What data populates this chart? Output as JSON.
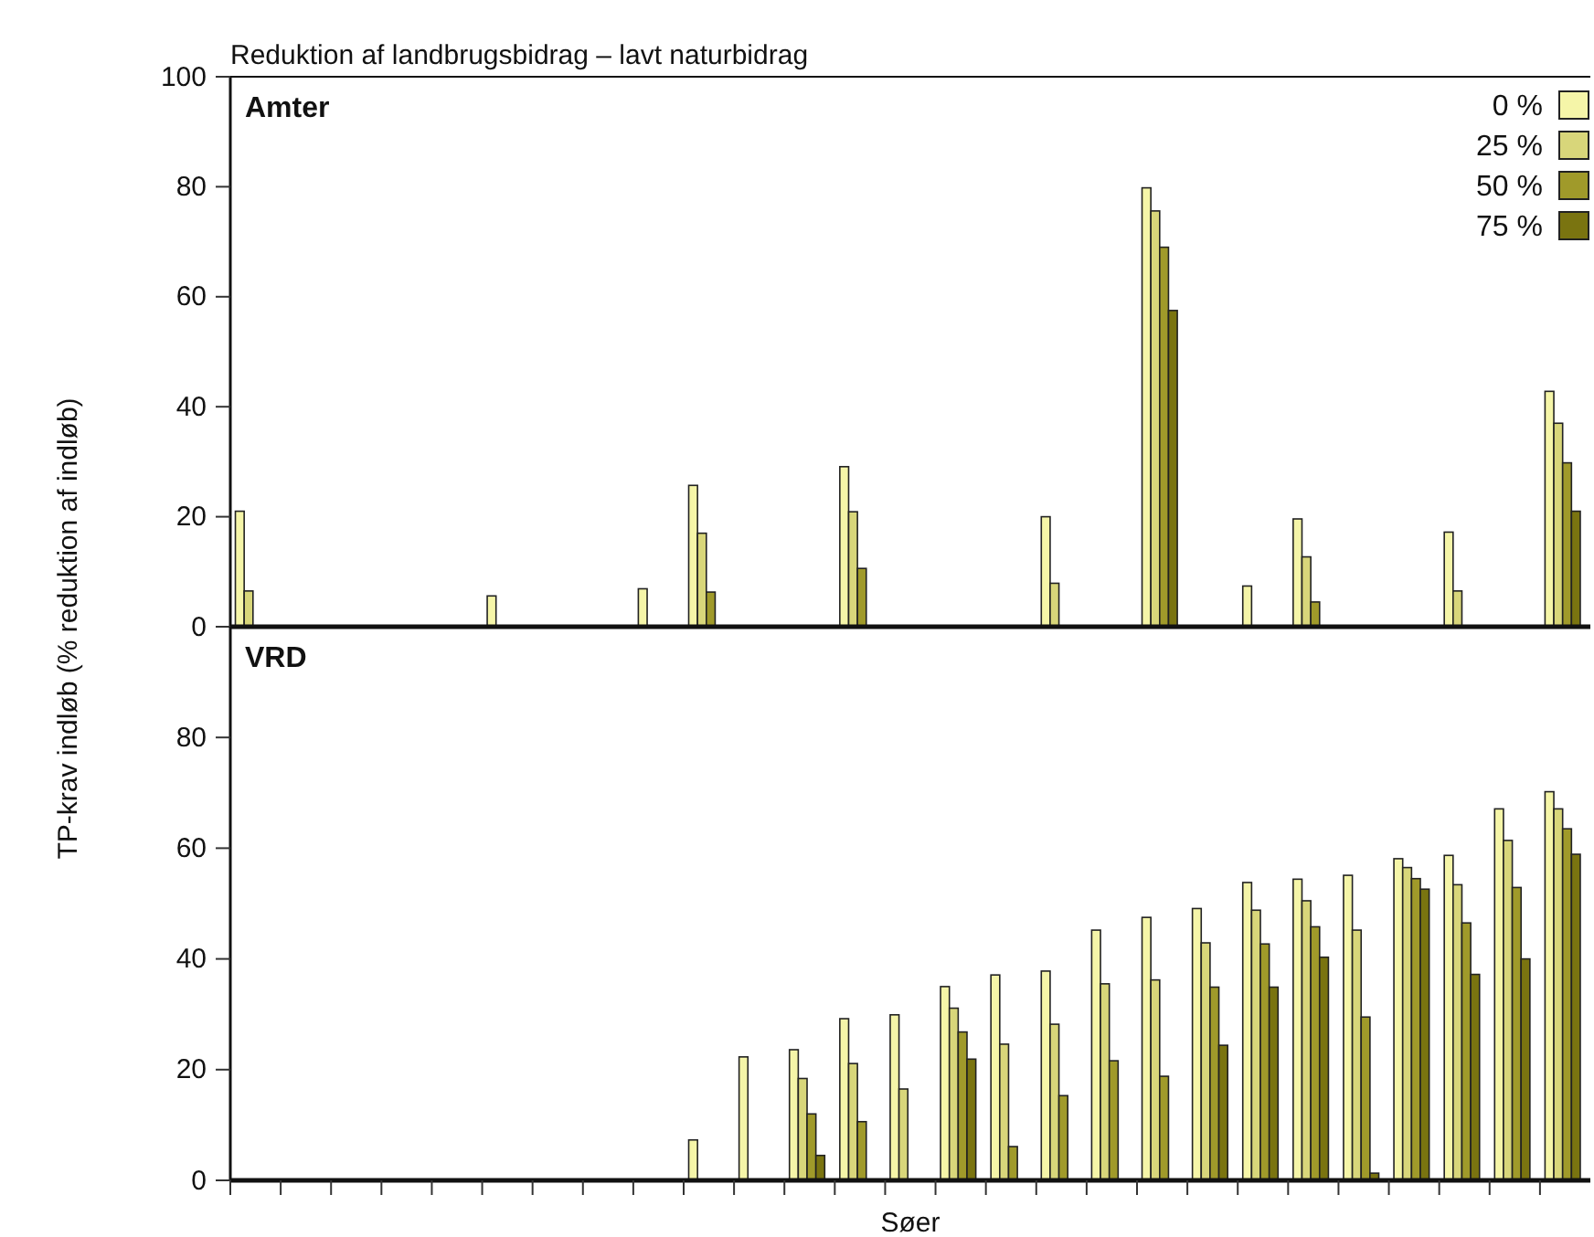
{
  "chart_data": [
    {
      "type": "bar",
      "title": "Reduktion af landbrugsbidrag – lavt naturbidrag",
      "ylabel": "TP-krav indløb (% reduktion af indløb)",
      "annotations": [
        "Amter"
      ],
      "categories": [
        null,
        null,
        null,
        null,
        null,
        null,
        null,
        null,
        null,
        null,
        null,
        null,
        null,
        null,
        null,
        null,
        null,
        null,
        null,
        null,
        null,
        null,
        null,
        null,
        null,
        null,
        null
      ],
      "series": [
        {
          "name": "0 %",
          "color": "#f5f5a8",
          "values": [
            21,
            0,
            0,
            0,
            0,
            5.6,
            0,
            0,
            6.9,
            25.7,
            0,
            0,
            29.1,
            0,
            0,
            0,
            20,
            0,
            79.8,
            0,
            7.4,
            19.6,
            0,
            0,
            17.2,
            0,
            42.8
          ]
        },
        {
          "name": "25 %",
          "color": "#d8d67a",
          "values": [
            6.5,
            0,
            0,
            0,
            0,
            0,
            0,
            0,
            0,
            17,
            0,
            0,
            20.9,
            0,
            0,
            0,
            7.9,
            0,
            75.6,
            0,
            0,
            12.7,
            0,
            0,
            6.5,
            0,
            37
          ]
        },
        {
          "name": "50 %",
          "color": "#a09a2a",
          "values": [
            0,
            0,
            0,
            0,
            0,
            0,
            0,
            0,
            0,
            6.3,
            0,
            0,
            10.6,
            0,
            0,
            0,
            0,
            0,
            69,
            0,
            0,
            4.5,
            0,
            0,
            0,
            0,
            29.8
          ]
        },
        {
          "name": "75 %",
          "color": "#7a7410",
          "values": [
            0,
            0,
            0,
            0,
            0,
            0,
            0,
            0,
            0,
            0,
            0,
            0,
            0,
            0,
            0,
            0,
            0,
            0,
            57.5,
            0,
            0,
            0,
            0,
            0,
            0,
            0,
            21
          ]
        }
      ],
      "ylim": [
        0,
        100
      ],
      "yticks": [
        0,
        20,
        40,
        60,
        80,
        100
      ],
      "tick_labels": "y",
      "legend": "top right"
    },
    {
      "type": "bar",
      "xlabel": "Søer",
      "annotations": [
        "VRD"
      ],
      "categories": [
        null,
        null,
        null,
        null,
        null,
        null,
        null,
        null,
        null,
        null,
        null,
        null,
        null,
        null,
        null,
        null,
        null,
        null,
        null,
        null,
        null,
        null,
        null,
        null,
        null,
        null,
        null
      ],
      "series": [
        {
          "color": "#f5f5a8",
          "values": [
            0,
            0,
            0,
            0,
            0,
            0,
            0,
            0,
            0,
            7.3,
            22.3,
            23.6,
            29.2,
            29.9,
            35,
            37.1,
            37.8,
            45.2,
            47.5,
            49.1,
            53.8,
            54.4,
            55.1,
            58.1,
            58.7,
            67.1,
            70.2
          ]
        },
        {
          "color": "#d8d67a",
          "values": [
            0,
            0,
            0,
            0,
            0,
            0,
            0,
            0,
            0,
            0,
            0,
            18.4,
            21.1,
            16.5,
            31.1,
            24.6,
            28.2,
            35.5,
            36.2,
            42.9,
            48.8,
            50.5,
            45.2,
            56.5,
            53.4,
            61.4,
            67.1
          ]
        },
        {
          "color": "#a09a2a",
          "values": [
            0,
            0,
            0,
            0,
            0,
            0,
            0,
            0,
            0,
            0,
            0,
            12,
            10.6,
            0,
            26.8,
            6.1,
            15.3,
            21.6,
            18.8,
            34.9,
            42.7,
            45.8,
            29.5,
            54.5,
            46.5,
            52.9,
            63.5
          ]
        },
        {
          "color": "#7a7410",
          "values": [
            0,
            0,
            0,
            0,
            0,
            0,
            0,
            0,
            0,
            0,
            0,
            4.5,
            0,
            0,
            21.9,
            0,
            0,
            0,
            0,
            24.4,
            34.9,
            40.3,
            1.3,
            52.6,
            37.2,
            40,
            58.9
          ]
        }
      ],
      "ylim": [
        0,
        100
      ],
      "yticks": [
        0,
        20,
        40,
        60,
        80
      ],
      "tick_labels": "y"
    }
  ]
}
